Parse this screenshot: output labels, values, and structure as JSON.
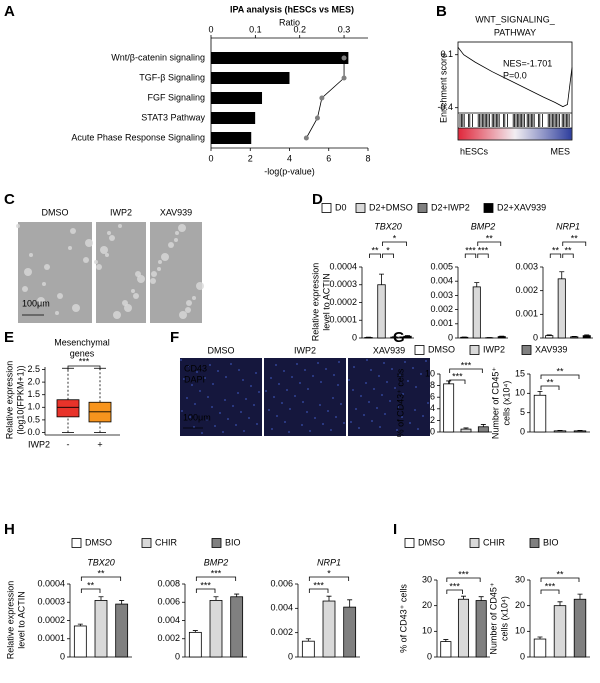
{
  "panel_labels": [
    "A",
    "B",
    "C",
    "D",
    "E",
    "F",
    "G",
    "H",
    "I"
  ],
  "microscopy": [
    {
      "conditions": [
        "DMSO",
        "IWP2",
        "XAV939"
      ],
      "scale_bar": "100μm"
    },
    {
      "conditions": [
        "DMSO",
        "IWP2",
        "XAV939"
      ],
      "stains": [
        "CD43",
        "DAPI"
      ],
      "stain_colors": [
        "#ff3030",
        "#4a6be0"
      ],
      "scale_bar": "100μm"
    }
  ],
  "chart_data": [
    {
      "type": "bar-line",
      "title": "IPA analysis (hESCs vs MES)",
      "categories": [
        "Wnt/β-catenin signaling",
        "TGF-β Signaling",
        "FGF Signaling",
        "STAT3 Pathway",
        "Acute Phase Response Signaling"
      ],
      "label_colors": [
        "#e8332a",
        "#000000",
        "#000000",
        "#000000",
        "#000000"
      ],
      "bars": {
        "values": [
          7.0,
          4.0,
          2.6,
          2.25,
          2.05
        ],
        "color": "#000000"
      },
      "line": {
        "values": [
          0.3,
          0.3,
          0.25,
          0.24,
          0.215
        ],
        "color": "#808080",
        "axis": "x2"
      },
      "xlabel": "-log(p-value)",
      "xlim": [
        0,
        8
      ],
      "xticks": [
        0,
        2,
        4,
        6,
        8
      ],
      "x2label": "Ratio",
      "x2lim": [
        0,
        0.354
      ],
      "x2ticks": [
        0,
        0.1,
        0.2,
        0.3
      ]
    },
    {
      "type": "line",
      "title": [
        "WNT_SIGNALING_",
        "PATHWAY"
      ],
      "ylabel": "Enrichment score",
      "x": [
        0,
        5,
        15,
        30,
        45,
        60,
        75,
        85,
        92,
        96,
        100
      ],
      "values": [
        0.17,
        0.1,
        0.03,
        -0.06,
        -0.14,
        -0.22,
        -0.3,
        -0.35,
        -0.39,
        -0.37,
        -0.02
      ],
      "color": "#5cc13a",
      "xlim": [
        0,
        100
      ],
      "ylim": [
        -0.45,
        0.22
      ],
      "yticks": [
        0.1,
        -0.4
      ],
      "annotations": [
        "NES=-1.701",
        "P=0.0"
      ],
      "x_end_labels": [
        "hESCs",
        "MES"
      ]
    },
    {
      "type": "bar",
      "ylabel": [
        "Relative expression",
        "level to ACTIN"
      ],
      "categories": [
        "TBX20",
        "BMP2",
        "NRP1"
      ],
      "series": [
        {
          "name": "D0",
          "color": "#ffffff",
          "values": [
            3e-06,
            5e-05,
            0.0001
          ],
          "errors": [
            2e-06,
            2e-05,
            3e-05
          ]
        },
        {
          "name": "D2+DMSO",
          "color": "#d9d9d9",
          "values": [
            0.0003,
            0.0036,
            0.0025
          ],
          "errors": [
            6e-05,
            0.0003,
            0.0003
          ]
        },
        {
          "name": "D2+IWP2",
          "color": "#808080",
          "values": [
            5e-06,
            2e-05,
            5e-05
          ],
          "errors": [
            2e-06,
            1e-05,
            2e-05
          ]
        },
        {
          "name": "D2+XAV939",
          "color": "#000000",
          "values": [
            1e-05,
            0.0001,
            0.0001
          ],
          "errors": [
            4e-06,
            3e-05,
            3e-05
          ]
        }
      ],
      "axes": [
        {
          "ylim": [
            0,
            0.0004
          ],
          "yticks": [
            0,
            0.0001,
            0.0002,
            0.0003,
            0.0004
          ],
          "annotations": [
            "**",
            "*",
            "*"
          ]
        },
        {
          "ylim": [
            0,
            0.005
          ],
          "yticks": [
            0,
            0.001,
            0.002,
            0.003,
            0.004,
            0.005
          ],
          "annotations": [
            "***",
            "***",
            "**"
          ]
        },
        {
          "ylim": [
            0,
            0.003
          ],
          "yticks": [
            0,
            0.001,
            0.002,
            0.003
          ],
          "annotations": [
            "**",
            "**",
            "**"
          ]
        }
      ]
    },
    {
      "type": "box",
      "title": [
        "Mesenchymal",
        "genes"
      ],
      "ylabel": [
        "Relative expression",
        "(log10(FPKM+1))"
      ],
      "xlabel": "IWP2",
      "categories": [
        "-",
        "+"
      ],
      "colors": [
        "#e8332a",
        "#f7941d"
      ],
      "whisker_low": [
        0,
        0
      ],
      "q1": [
        0.62,
        0.42
      ],
      "median": [
        1.0,
        0.82
      ],
      "q3": [
        1.3,
        1.2
      ],
      "whisker_high": [
        2.55,
        2.55
      ],
      "ylim": [
        -0.1,
        2.6
      ],
      "yticks": [
        {
          "value": 0,
          "label": "0.0"
        },
        0.5,
        {
          "value": 1,
          "label": "1.0"
        },
        1.5,
        {
          "value": 2,
          "label": "2.0"
        },
        2.5
      ],
      "annotations": [
        "***"
      ]
    },
    {
      "type": "bar",
      "series": [
        {
          "name": "DMSO",
          "color": "#ffffff",
          "values": [
            8.3,
            9.5
          ],
          "errors": [
            0.5,
            1.0
          ]
        },
        {
          "name": "IWP2",
          "color": "#d9d9d9",
          "values": [
            0.5,
            0.3
          ],
          "errors": [
            0.2,
            0.1
          ]
        },
        {
          "name": "XAV939",
          "color": "#808080",
          "values": [
            0.9,
            0.3
          ],
          "errors": [
            0.4,
            0.1
          ]
        }
      ],
      "axes": [
        {
          "ylabel": [
            "% of CD43⁺ cells"
          ],
          "ylim": [
            0,
            10
          ],
          "yticks": [
            0,
            2,
            4,
            6,
            8,
            10
          ],
          "annotations": [
            "***",
            "***"
          ]
        },
        {
          "ylabel": [
            "Number of CD45⁺",
            "cells (x10⁴)"
          ],
          "ylim": [
            0,
            15
          ],
          "yticks": [
            0,
            5,
            10,
            15
          ],
          "annotations": [
            "**",
            "**"
          ]
        }
      ]
    },
    {
      "type": "bar",
      "ylabel": [
        "Relative expression",
        "level to ACTIN"
      ],
      "categories": [
        "TBX20",
        "BMP2",
        "NRP1"
      ],
      "series": [
        {
          "name": "DMSO",
          "color": "#ffffff",
          "values": [
            0.00017,
            0.0027,
            0.0013
          ],
          "errors": [
            1e-05,
            0.0002,
            0.0002
          ]
        },
        {
          "name": "CHIR",
          "color": "#d9d9d9",
          "values": [
            0.00031,
            0.0062,
            0.0046
          ],
          "errors": [
            2e-05,
            0.0004,
            0.0004
          ]
        },
        {
          "name": "BIO",
          "color": "#808080",
          "values": [
            0.00029,
            0.0066,
            0.0041
          ],
          "errors": [
            2e-05,
            0.0003,
            0.0006
          ]
        }
      ],
      "axes": [
        {
          "ylim": [
            0,
            0.0004
          ],
          "yticks": [
            0,
            0.0001,
            0.0002,
            0.0003,
            0.0004
          ],
          "annotations": [
            "**",
            "**"
          ]
        },
        {
          "ylim": [
            0,
            0.008
          ],
          "yticks": [
            0,
            0.002,
            0.004,
            0.006,
            0.008
          ],
          "annotations": [
            "***",
            "***"
          ]
        },
        {
          "ylim": [
            0,
            0.006
          ],
          "yticks": [
            0,
            0.002,
            0.004,
            0.006
          ],
          "annotations": [
            "***",
            "*"
          ]
        }
      ]
    },
    {
      "type": "bar",
      "series": [
        {
          "name": "DMSO",
          "color": "#ffffff",
          "values": [
            6,
            7
          ],
          "errors": [
            0.8,
            0.8
          ]
        },
        {
          "name": "CHIR",
          "color": "#d9d9d9",
          "values": [
            22.5,
            20
          ],
          "errors": [
            1.2,
            1.5
          ]
        },
        {
          "name": "BIO",
          "color": "#808080",
          "values": [
            22,
            22.5
          ],
          "errors": [
            1.5,
            2
          ]
        }
      ],
      "axes": [
        {
          "ylabel": [
            "% of CD43⁺ cells"
          ],
          "ylim": [
            0,
            30
          ],
          "yticks": [
            0,
            10,
            20,
            30
          ],
          "annotations": [
            "***",
            "***"
          ]
        },
        {
          "ylabel": [
            "Number of CD45⁺",
            "cells (x10⁴)"
          ],
          "ylim": [
            0,
            30
          ],
          "yticks": [
            0,
            10,
            20,
            30
          ],
          "annotations": [
            "***",
            "**"
          ]
        }
      ]
    }
  ]
}
